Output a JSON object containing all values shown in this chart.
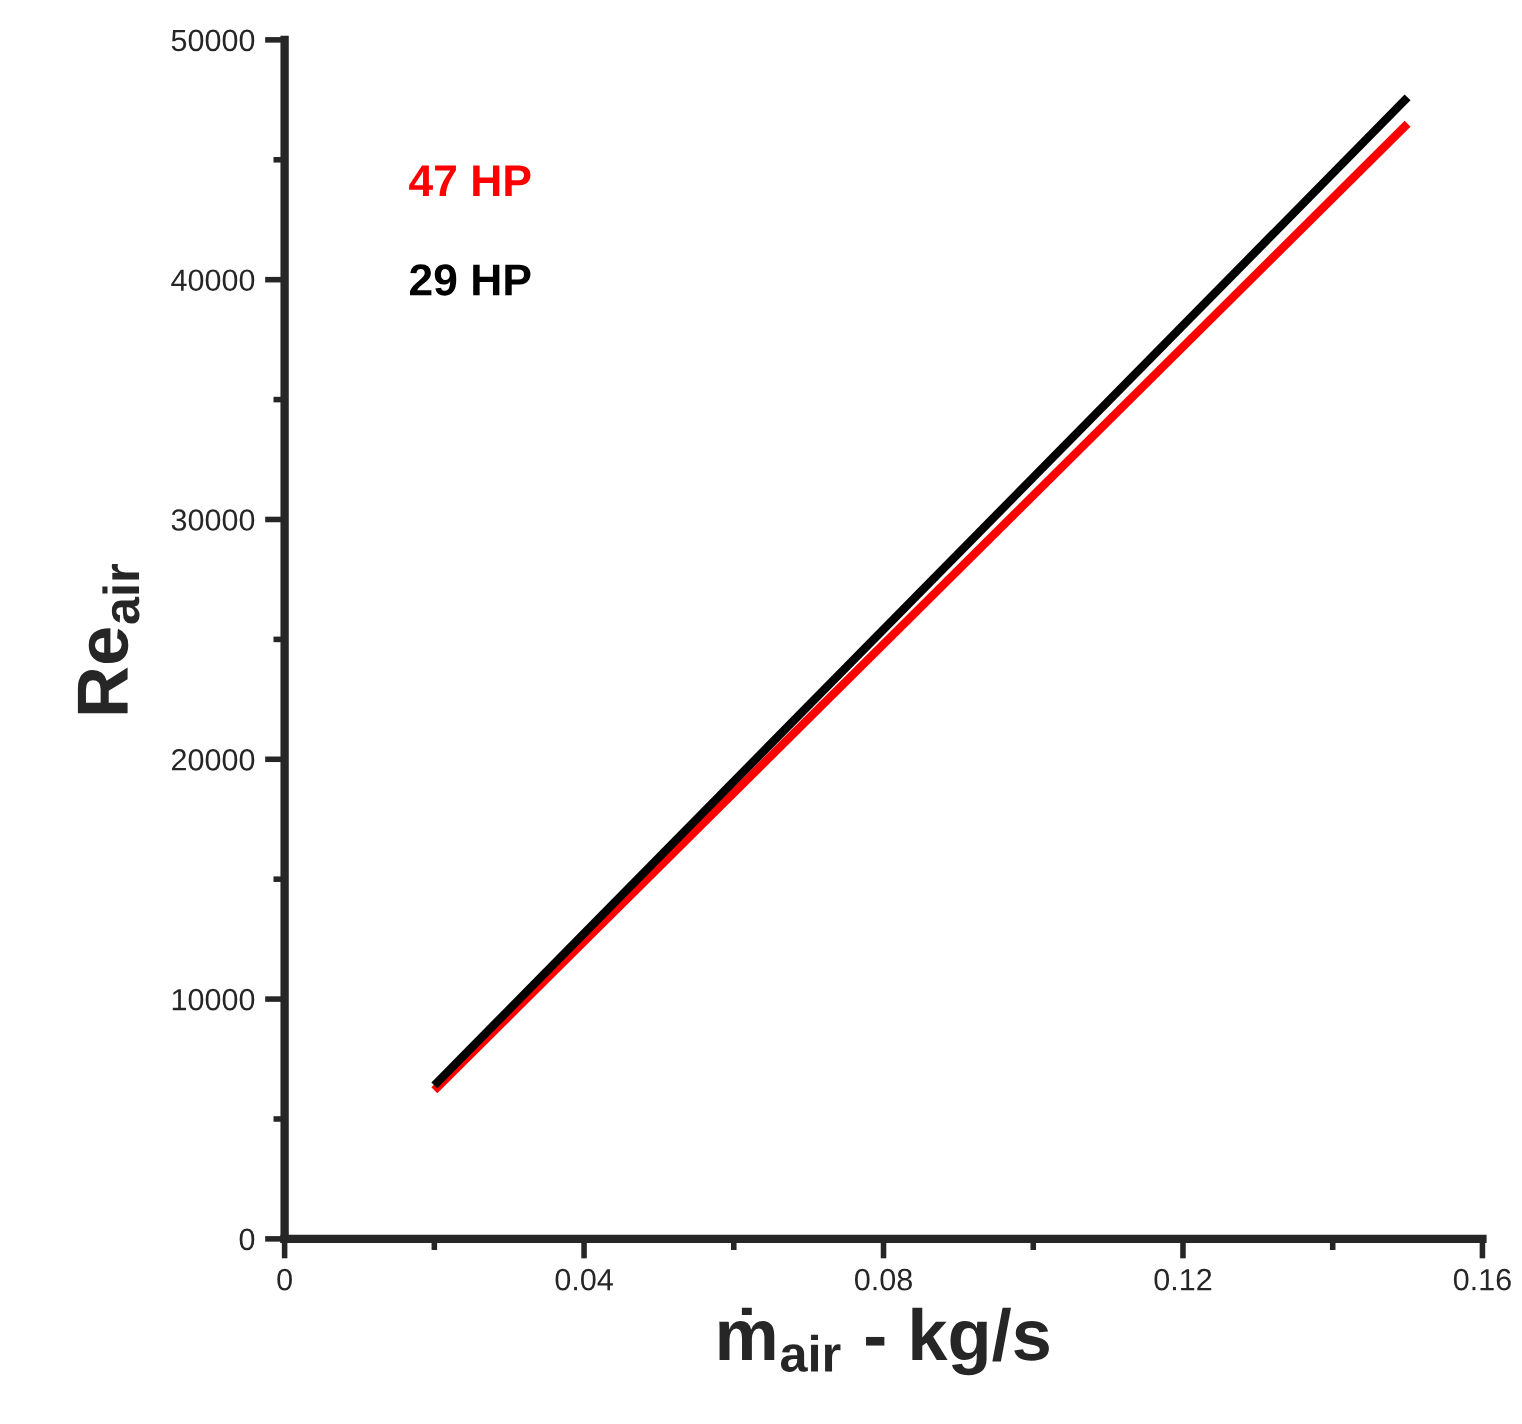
{
  "chart_data": {
    "type": "line",
    "xlabel": "ṁ$_{air}$ - kg/s",
    "ylabel": "Re$_{air}$",
    "series": [
      {
        "name": "47 HP",
        "color": "#ff0000",
        "values": [
          6200,
          46500
        ]
      },
      {
        "name": "29 HP",
        "color": "#000000",
        "values": [
          6400,
          47600
        ]
      }
    ],
    "x": [
      0.02,
      0.15
    ],
    "xlim": [
      0,
      0.16
    ],
    "xticks": [
      0,
      0.04,
      0.08,
      0.12,
      0.16
    ],
    "ylim": [
      0,
      50000
    ],
    "yticks": [
      0,
      10000,
      20000,
      30000,
      40000,
      50000
    ],
    "grid": false,
    "legend": "top left",
    "marker": "none",
    "line_style": "solid"
  }
}
